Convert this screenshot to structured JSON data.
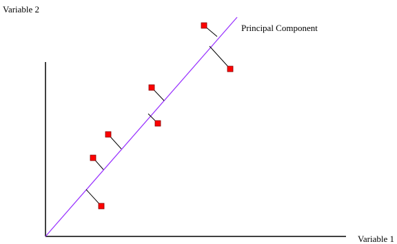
{
  "labels": {
    "y_axis": "Variable 2",
    "x_axis": "Variable 1",
    "component": "Principal Component"
  },
  "colors": {
    "point": "#ff0000",
    "point_border": "#800000",
    "component_line": "#9933ff",
    "axis": "#000000",
    "projection": "#000000"
  }
}
